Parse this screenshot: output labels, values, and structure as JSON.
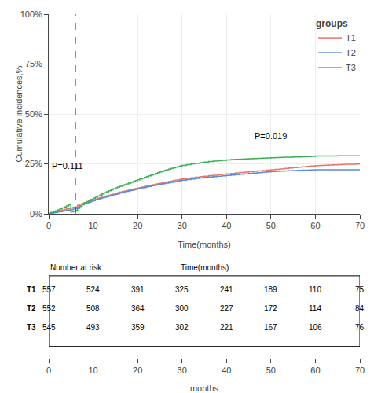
{
  "chart_data": [
    {
      "type": "step",
      "xlabel": "Time(months)",
      "ylabel": "Cumulative incidences,%",
      "x": [
        0,
        0.5,
        1.0,
        1.5,
        2.0,
        2.5,
        3.0,
        3.5,
        4.0,
        4.5,
        5.0,
        5.5,
        6.0,
        6.5,
        7.0,
        7.5,
        8.0,
        8.5,
        9.0,
        9.5,
        10.0,
        10.5,
        11.0,
        11.5,
        12.0,
        12.5,
        13.0,
        13.5,
        14.0,
        14.5,
        15.0,
        15.5,
        16.0,
        16.5,
        17.0,
        17.5,
        18.0,
        18.5,
        19.0,
        19.5,
        20.0,
        20.5,
        21.0,
        21.5,
        22.0,
        22.5,
        23.0,
        23.5,
        24.0,
        24.5,
        25.0,
        25.5,
        26.0,
        26.5,
        27.0,
        27.5,
        28.0,
        28.5,
        29.0,
        29.5,
        30.0,
        31.0,
        32.0,
        33.0,
        34.0,
        35.0,
        36.0,
        37.0,
        38.0,
        39.0,
        40.0,
        41.0,
        42.0,
        43.0,
        44.0,
        45.0,
        46.0,
        47.0,
        48.0,
        49.0,
        50.0,
        51.0,
        52.0,
        53.0,
        54.0,
        55.0,
        56.0,
        57.0,
        58.0,
        59.0,
        60.0,
        61.0,
        62.0,
        63.0,
        64.0,
        65.0,
        66.0,
        67.0,
        68.0,
        69.0,
        70.0
      ],
      "series": [
        {
          "name": "T1",
          "color": "#E8746A",
          "values": [
            0.002,
            0.005,
            0.008,
            0.011,
            0.014,
            0.017,
            0.019,
            0.022,
            0.025,
            0.027,
            0.03,
            0.033,
            0.035,
            0.042,
            0.048,
            0.052,
            0.056,
            0.06,
            0.063,
            0.066,
            0.07,
            0.073,
            0.077,
            0.08,
            0.083,
            0.087,
            0.09,
            0.093,
            0.096,
            0.099,
            0.102,
            0.105,
            0.108,
            0.111,
            0.113,
            0.116,
            0.118,
            0.121,
            0.124,
            0.126,
            0.129,
            0.131,
            0.134,
            0.137,
            0.139,
            0.142,
            0.144,
            0.146,
            0.149,
            0.151,
            0.153,
            0.155,
            0.158,
            0.16,
            0.162,
            0.164,
            0.166,
            0.168,
            0.17,
            0.172,
            0.174,
            0.177,
            0.18,
            0.183,
            0.186,
            0.188,
            0.191,
            0.193,
            0.196,
            0.198,
            0.2,
            0.202,
            0.205,
            0.207,
            0.209,
            0.211,
            0.213,
            0.215,
            0.217,
            0.219,
            0.221,
            0.223,
            0.225,
            0.227,
            0.229,
            0.231,
            0.233,
            0.235,
            0.237,
            0.239,
            0.241,
            0.242,
            0.243,
            0.244,
            0.245,
            0.246,
            0.247,
            0.248,
            0.248,
            0.249,
            0.249
          ]
        },
        {
          "name": "T2",
          "color": "#5B8ED6",
          "values": [
            0.001,
            0.003,
            0.005,
            0.007,
            0.009,
            0.011,
            0.013,
            0.015,
            0.017,
            0.019,
            0.021,
            0.024,
            0.027,
            0.033,
            0.04,
            0.045,
            0.05,
            0.054,
            0.058,
            0.062,
            0.066,
            0.07,
            0.073,
            0.077,
            0.08,
            0.083,
            0.086,
            0.089,
            0.092,
            0.095,
            0.098,
            0.101,
            0.104,
            0.107,
            0.11,
            0.112,
            0.115,
            0.117,
            0.12,
            0.122,
            0.125,
            0.127,
            0.13,
            0.132,
            0.135,
            0.137,
            0.14,
            0.142,
            0.144,
            0.146,
            0.148,
            0.15,
            0.152,
            0.154,
            0.156,
            0.158,
            0.16,
            0.162,
            0.164,
            0.166,
            0.168,
            0.171,
            0.174,
            0.177,
            0.179,
            0.182,
            0.184,
            0.186,
            0.188,
            0.19,
            0.192,
            0.194,
            0.196,
            0.198,
            0.2,
            0.202,
            0.204,
            0.206,
            0.208,
            0.21,
            0.212,
            0.213,
            0.214,
            0.215,
            0.216,
            0.217,
            0.218,
            0.219,
            0.219,
            0.22,
            0.221,
            0.221,
            0.221,
            0.221,
            0.221,
            0.221,
            0.221,
            0.221,
            0.221,
            0.221,
            0.221
          ]
        },
        {
          "name": "T3",
          "color": "#3CB054",
          "values": [
            0.003,
            0.007,
            0.011,
            0.015,
            0.02,
            0.025,
            0.03,
            0.035,
            0.04,
            0.045,
            0.01,
            0.012,
            0.018,
            0.028,
            0.038,
            0.047,
            0.055,
            0.061,
            0.067,
            0.072,
            0.078,
            0.083,
            0.089,
            0.094,
            0.1,
            0.105,
            0.11,
            0.115,
            0.12,
            0.125,
            0.13,
            0.134,
            0.138,
            0.142,
            0.146,
            0.15,
            0.154,
            0.158,
            0.162,
            0.166,
            0.17,
            0.174,
            0.178,
            0.182,
            0.186,
            0.19,
            0.194,
            0.198,
            0.202,
            0.206,
            0.21,
            0.214,
            0.218,
            0.221,
            0.224,
            0.227,
            0.23,
            0.233,
            0.236,
            0.239,
            0.242,
            0.246,
            0.25,
            0.253,
            0.256,
            0.259,
            0.262,
            0.264,
            0.266,
            0.268,
            0.27,
            0.272,
            0.273,
            0.274,
            0.275,
            0.276,
            0.277,
            0.278,
            0.279,
            0.28,
            0.281,
            0.282,
            0.283,
            0.284,
            0.284,
            0.285,
            0.285,
            0.286,
            0.287,
            0.288,
            0.289,
            0.289,
            0.289,
            0.289,
            0.289,
            0.29,
            0.29,
            0.29,
            0.29,
            0.29,
            0.29
          ]
        }
      ],
      "xlim": [
        0,
        70
      ],
      "xticks": [
        0,
        10,
        20,
        30,
        40,
        50,
        60,
        70
      ],
      "ylim": [
        0,
        1.0
      ],
      "yticks": [
        {
          "value": 0,
          "label": "0%"
        },
        {
          "value": 0.25,
          "label": "25%"
        },
        {
          "value": 0.5,
          "label": "50%"
        },
        {
          "value": 0.75,
          "label": "75%"
        },
        {
          "value": 1.0,
          "label": "100%"
        }
      ],
      "legend": "upper right",
      "legend_title": "groups",
      "annotations": [
        {
          "text": "P=0.111",
          "x": 0.3,
          "y": 0.21
        },
        {
          "text": "P=0.019",
          "x": 46,
          "y": 0.36
        }
      ],
      "reference_lines": [
        {
          "x": 6,
          "line_style": "dashed"
        }
      ]
    },
    {
      "type": "table",
      "title": "Number at risk",
      "subtitle": "Time(months)",
      "xlabel": "months",
      "x": [
        0,
        10,
        20,
        30,
        40,
        50,
        60,
        70
      ],
      "xlim": [
        0,
        70
      ],
      "xticks": [
        0,
        10,
        20,
        30,
        40,
        50,
        60,
        70
      ],
      "series": [
        {
          "name": "T1",
          "values": [
            557,
            524,
            391,
            325,
            241,
            189,
            110,
            75
          ]
        },
        {
          "name": "T2",
          "values": [
            552,
            508,
            364,
            300,
            227,
            172,
            114,
            84
          ]
        },
        {
          "name": "T3",
          "values": [
            545,
            493,
            359,
            302,
            221,
            167,
            106,
            76
          ]
        }
      ]
    }
  ]
}
